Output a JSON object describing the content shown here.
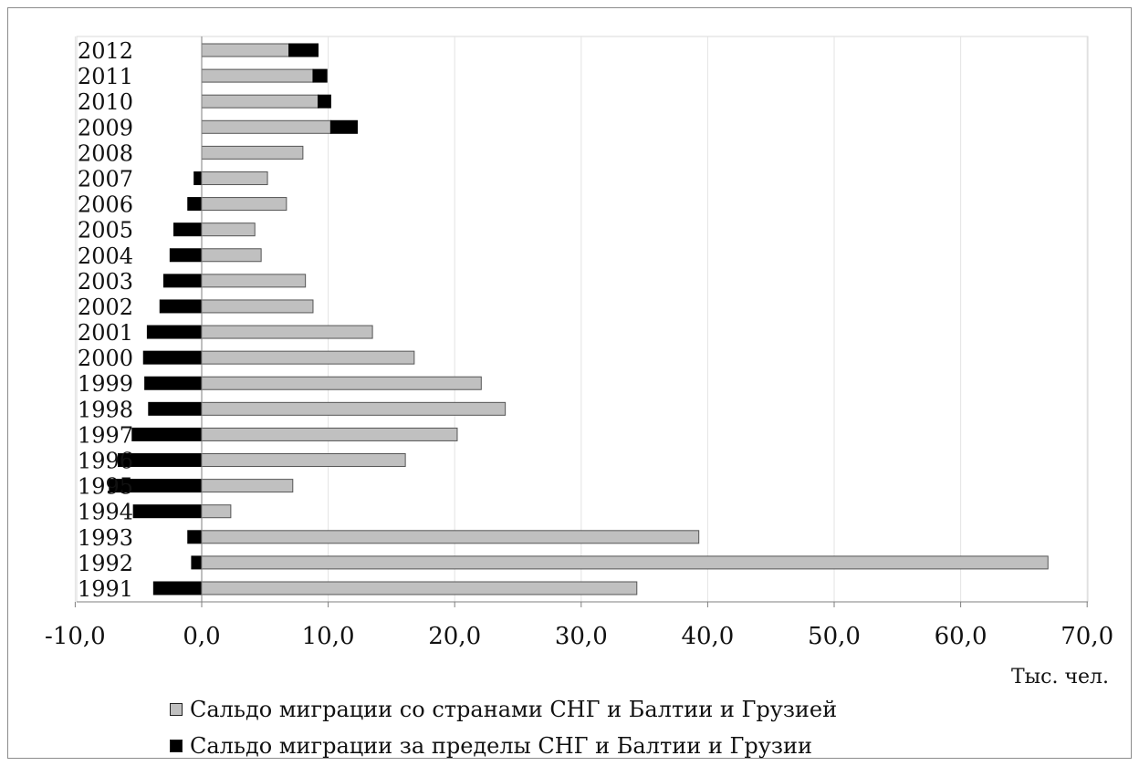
{
  "chart_data": {
    "type": "bar",
    "orientation": "horizontal",
    "stacked": true,
    "categories": [
      "1991",
      "1992",
      "1993",
      "1994",
      "1995",
      "1996",
      "1997",
      "1998",
      "1999",
      "2000",
      "2001",
      "2002",
      "2003",
      "2004",
      "2005",
      "2006",
      "2007",
      "2008",
      "2009",
      "2010",
      "2011",
      "2012"
    ],
    "series": [
      {
        "name": "Сальдо миграции со странами СНГ и Балтии и Грузией",
        "color": "#c0c0c0",
        "values": [
          34.4,
          66.9,
          39.3,
          2.3,
          7.2,
          16.1,
          20.2,
          24.0,
          22.1,
          16.8,
          13.5,
          8.8,
          8.2,
          4.7,
          4.2,
          6.7,
          5.2,
          8.0,
          10.2,
          9.2,
          8.8,
          6.9
        ]
      },
      {
        "name": "Сальдо миграции за пределы СНГ и Балтии и Грузии",
        "color": "#000000",
        "values": [
          -3.8,
          -0.8,
          -1.1,
          -5.4,
          -7.3,
          -6.6,
          -5.5,
          -4.2,
          -4.5,
          -4.6,
          -4.3,
          -3.3,
          -3.0,
          -2.5,
          -2.2,
          -1.1,
          -0.6,
          0.0,
          2.1,
          1.0,
          1.1,
          2.3
        ]
      }
    ],
    "xlim": [
      -10,
      70
    ],
    "xticks": [
      -10,
      0,
      10,
      20,
      30,
      40,
      50,
      60,
      70
    ],
    "xtick_labels": [
      "-10,0",
      "0,0",
      "10,0",
      "20,0",
      "30,0",
      "40,0",
      "50,0",
      "60,0",
      "70,0"
    ],
    "xlabel": "Тыс. чел.",
    "ylabel": "",
    "title": "",
    "grid": "vertical",
    "legend_position": "bottom"
  }
}
